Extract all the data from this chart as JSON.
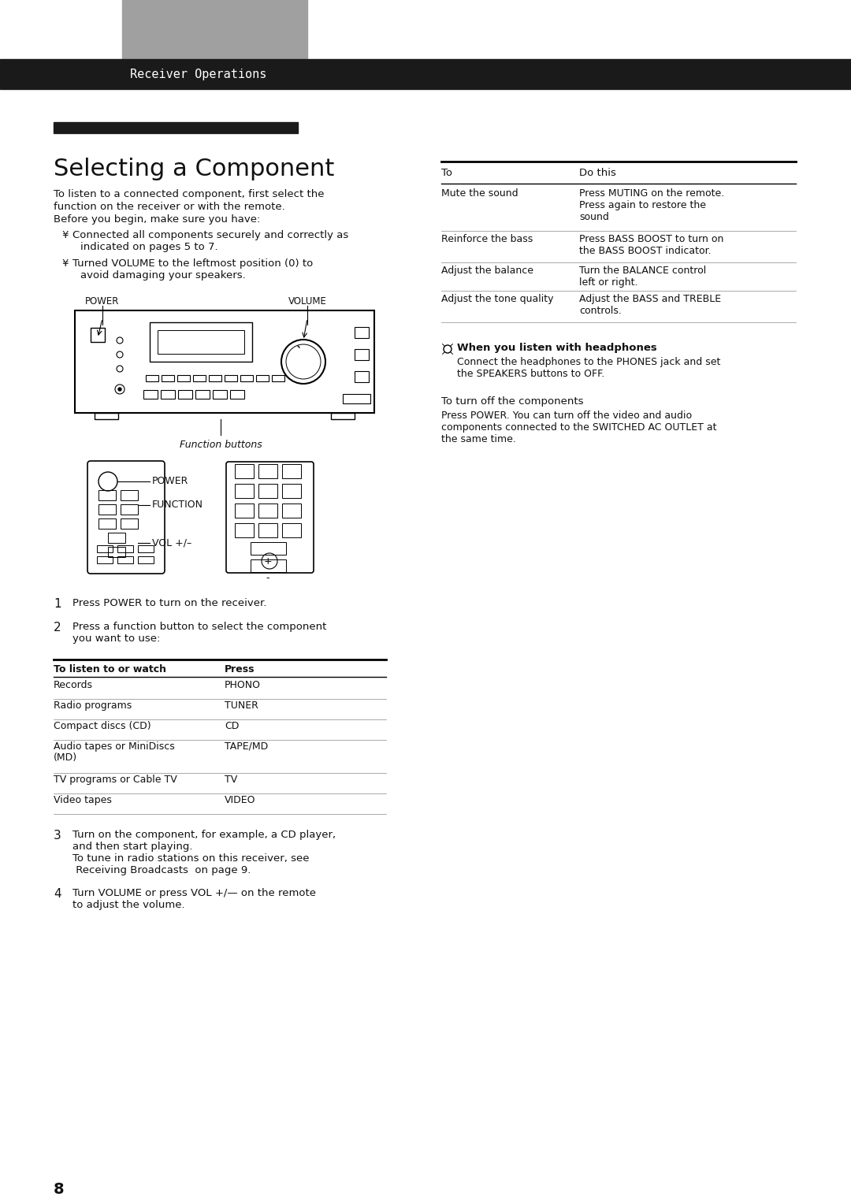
{
  "page_bg": "#ffffff",
  "header_bar_color": "#1a1a1a",
  "header_text": "Receiver Operations",
  "header_text_color": "#ffffff",
  "header_font": "monospace",
  "section_title": "Selecting a Component",
  "section_bar_color": "#1a1a1a",
  "body_text_color": "#111111",
  "intro_lines": [
    "To listen to a connected component, first select the",
    "function on the receiver or with the remote.",
    "Before you begin, make sure you have:"
  ],
  "bullet_char": "¥",
  "bullets": [
    [
      "Connected all components securely and correctly as",
      "indicated on pages 5 to 7."
    ],
    [
      "Turned VOLUME to the leftmost position (0) to",
      "avoid damaging your speakers."
    ]
  ],
  "steps": [
    {
      "num": "1",
      "text": "Press POWER to turn on the receiver."
    },
    {
      "num": "2",
      "text": "Press a function button to select the component\nyou want to use:"
    },
    {
      "num": "3",
      "text": "Turn on the component, for example, a CD player,\nand then start playing.\nTo tune in radio stations on this receiver, see\n Receiving Broadcasts  on page 9."
    },
    {
      "num": "4",
      "text": "Turn VOLUME or press VOL +/— on the remote\nto adjust the volume."
    }
  ],
  "table1_header": [
    "To listen to or watch",
    "Press"
  ],
  "table1_rows": [
    [
      "Records",
      "PHONO"
    ],
    [
      "Radio programs",
      "TUNER"
    ],
    [
      "Compact discs (CD)",
      "CD"
    ],
    [
      "Audio tapes or MiniDiscs\n(MD)",
      "TAPE/MD"
    ],
    [
      "TV programs or Cable TV",
      "TV"
    ],
    [
      "Video tapes",
      "VIDEO"
    ]
  ],
  "table2_header": [
    "To",
    "Do this"
  ],
  "table2_rows": [
    [
      "Mute the sound",
      "Press MUTING on the remote.\nPress again to restore the\nsound"
    ],
    [
      "Reinforce the bass",
      "Press BASS BOOST to turn on\nthe BASS BOOST indicator."
    ],
    [
      "Adjust the balance",
      "Turn the BALANCE control\nleft or right."
    ],
    [
      "Adjust the tone quality",
      "Adjust the BASS and TREBLE\ncontrols."
    ]
  ],
  "headphones_title": "When you listen with headphones",
  "headphones_text": "Connect the headphones to the PHONES jack and set\nthe SPEAKERS buttons to OFF.",
  "turnoff_title": "To turn off the components",
  "turnoff_text": "Press POWER. You can turn off the video and audio\ncomponents connected to the SWITCHED AC OUTLET at\nthe same time.",
  "page_number": "8",
  "gray_box_color": "#a0a0a0",
  "table_line_color": "#333333",
  "label_power": "POWER",
  "label_volume": "VOLUME",
  "label_function": "Function buttons",
  "label_power2": "POWER",
  "label_function2": "FUNCTION",
  "label_vol": "VOL +/–"
}
